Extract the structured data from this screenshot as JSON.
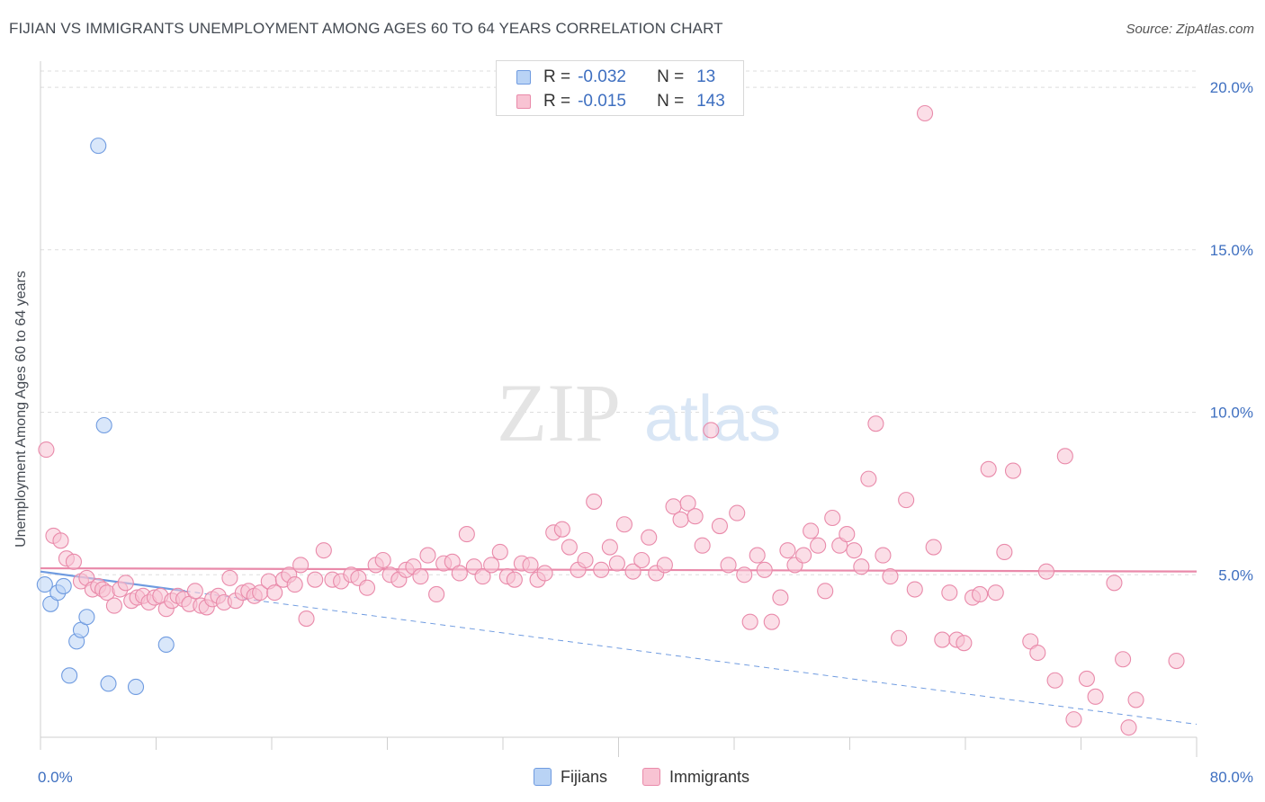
{
  "title": "FIJIAN VS IMMIGRANTS UNEMPLOYMENT AMONG AGES 60 TO 64 YEARS CORRELATION CHART",
  "source": "Source: ZipAtlas.com",
  "watermark": {
    "zip": "ZIP",
    "atlas": "atlas"
  },
  "legend": {
    "rows": [
      {
        "r_label": "R =",
        "r_value": "-0.032",
        "n_label": "N =",
        "n_value": "13",
        "fill": "#b9d3f5",
        "stroke": "#6f9be0"
      },
      {
        "r_label": "R =",
        "r_value": "-0.015",
        "n_label": "N =",
        "n_value": "143",
        "fill": "#f8c3d3",
        "stroke": "#e98aaa"
      }
    ]
  },
  "bottom_legend": [
    {
      "label": "Fijians",
      "fill": "#b9d3f5",
      "stroke": "#6f9be0"
    },
    {
      "label": "Immigrants",
      "fill": "#f8c3d3",
      "stroke": "#e98aaa"
    }
  ],
  "chart_data": {
    "type": "scatter",
    "title": "FIJIAN VS IMMIGRANTS UNEMPLOYMENT AMONG AGES 60 TO 64 YEARS CORRELATION CHART",
    "xlabel": "",
    "ylabel": "Unemployment Among Ages 60 to 64 years",
    "xlim": [
      0,
      80
    ],
    "ylim": [
      0,
      20.5
    ],
    "x_tick_labels": [
      {
        "value": 0,
        "label": "0.0%"
      },
      {
        "value": 80,
        "label": "80.0%"
      }
    ],
    "y_tick_labels": [
      {
        "value": 5,
        "label": "5.0%"
      },
      {
        "value": 10,
        "label": "10.0%"
      },
      {
        "value": 15,
        "label": "15.0%"
      },
      {
        "value": 20,
        "label": "20.0%"
      }
    ],
    "grid": "horizontal dashed",
    "series": [
      {
        "name": "Fijians",
        "color": "#6f9be0",
        "fill": "#b9d3f5",
        "trend": {
          "x0": 0,
          "y0": 5.1,
          "x1": 10,
          "y1": 4.5,
          "extended_to": [
            80,
            0.4
          ]
        },
        "points": [
          [
            0.3,
            4.7
          ],
          [
            0.7,
            4.1
          ],
          [
            1.2,
            4.45
          ],
          [
            1.6,
            4.65
          ],
          [
            2.0,
            1.9
          ],
          [
            2.5,
            2.95
          ],
          [
            2.8,
            3.3
          ],
          [
            3.2,
            3.7
          ],
          [
            4.0,
            18.2
          ],
          [
            4.4,
            9.6
          ],
          [
            4.7,
            1.65
          ],
          [
            6.6,
            1.55
          ],
          [
            8.7,
            2.85
          ]
        ]
      },
      {
        "name": "Immigrants",
        "color": "#e98aaa",
        "fill": "#f8c3d3",
        "trend": {
          "x0": 0,
          "y0": 5.2,
          "x1": 80,
          "y1": 5.1
        },
        "points": [
          [
            0.4,
            8.85
          ],
          [
            0.9,
            6.2
          ],
          [
            1.4,
            6.05
          ],
          [
            1.8,
            5.5
          ],
          [
            2.3,
            5.4
          ],
          [
            2.8,
            4.8
          ],
          [
            3.2,
            4.9
          ],
          [
            3.6,
            4.55
          ],
          [
            4.0,
            4.65
          ],
          [
            4.3,
            4.55
          ],
          [
            4.6,
            4.45
          ],
          [
            5.1,
            4.05
          ],
          [
            5.5,
            4.55
          ],
          [
            5.9,
            4.75
          ],
          [
            6.3,
            4.2
          ],
          [
            6.7,
            4.3
          ],
          [
            7.1,
            4.35
          ],
          [
            7.5,
            4.15
          ],
          [
            7.9,
            4.3
          ],
          [
            8.3,
            4.35
          ],
          [
            8.7,
            3.95
          ],
          [
            9.1,
            4.2
          ],
          [
            9.5,
            4.35
          ],
          [
            9.9,
            4.25
          ],
          [
            10.3,
            4.1
          ],
          [
            10.7,
            4.5
          ],
          [
            11.1,
            4.05
          ],
          [
            11.5,
            4.0
          ],
          [
            11.9,
            4.25
          ],
          [
            12.3,
            4.35
          ],
          [
            12.7,
            4.15
          ],
          [
            13.1,
            4.9
          ],
          [
            13.5,
            4.2
          ],
          [
            14.0,
            4.45
          ],
          [
            14.4,
            4.5
          ],
          [
            14.8,
            4.35
          ],
          [
            15.2,
            4.45
          ],
          [
            15.8,
            4.8
          ],
          [
            16.2,
            4.45
          ],
          [
            16.8,
            4.85
          ],
          [
            17.2,
            5.0
          ],
          [
            17.6,
            4.7
          ],
          [
            18.0,
            5.3
          ],
          [
            18.4,
            3.65
          ],
          [
            19.0,
            4.85
          ],
          [
            19.6,
            5.75
          ],
          [
            20.2,
            4.85
          ],
          [
            20.8,
            4.8
          ],
          [
            21.5,
            5.0
          ],
          [
            22.0,
            4.9
          ],
          [
            22.6,
            4.6
          ],
          [
            23.2,
            5.3
          ],
          [
            23.7,
            5.45
          ],
          [
            24.2,
            5.0
          ],
          [
            24.8,
            4.85
          ],
          [
            25.3,
            5.15
          ],
          [
            25.8,
            5.25
          ],
          [
            26.3,
            4.95
          ],
          [
            26.8,
            5.6
          ],
          [
            27.4,
            4.4
          ],
          [
            27.9,
            5.35
          ],
          [
            28.5,
            5.4
          ],
          [
            29.0,
            5.05
          ],
          [
            29.5,
            6.25
          ],
          [
            30.0,
            5.25
          ],
          [
            30.6,
            4.95
          ],
          [
            31.2,
            5.3
          ],
          [
            31.8,
            5.7
          ],
          [
            32.3,
            4.95
          ],
          [
            32.8,
            4.85
          ],
          [
            33.3,
            5.35
          ],
          [
            33.9,
            5.3
          ],
          [
            34.4,
            4.85
          ],
          [
            34.9,
            5.05
          ],
          [
            35.5,
            6.3
          ],
          [
            36.1,
            6.4
          ],
          [
            36.6,
            5.85
          ],
          [
            37.2,
            5.15
          ],
          [
            37.7,
            5.45
          ],
          [
            38.3,
            7.25
          ],
          [
            38.8,
            5.15
          ],
          [
            39.4,
            5.85
          ],
          [
            39.9,
            5.35
          ],
          [
            40.4,
            6.55
          ],
          [
            41.0,
            5.1
          ],
          [
            41.6,
            5.45
          ],
          [
            42.1,
            6.15
          ],
          [
            42.6,
            5.05
          ],
          [
            43.2,
            5.3
          ],
          [
            43.8,
            7.1
          ],
          [
            44.3,
            6.7
          ],
          [
            44.8,
            7.2
          ],
          [
            45.3,
            6.8
          ],
          [
            45.8,
            5.9
          ],
          [
            46.4,
            9.45
          ],
          [
            47.0,
            6.5
          ],
          [
            47.6,
            5.3
          ],
          [
            48.2,
            6.9
          ],
          [
            48.7,
            5.0
          ],
          [
            49.1,
            3.55
          ],
          [
            49.6,
            5.6
          ],
          [
            50.1,
            5.15
          ],
          [
            50.6,
            3.55
          ],
          [
            51.2,
            4.3
          ],
          [
            51.7,
            5.75
          ],
          [
            52.2,
            5.3
          ],
          [
            52.8,
            5.6
          ],
          [
            53.3,
            6.35
          ],
          [
            53.8,
            5.9
          ],
          [
            54.3,
            4.5
          ],
          [
            54.8,
            6.75
          ],
          [
            55.3,
            5.9
          ],
          [
            55.8,
            6.25
          ],
          [
            56.3,
            5.75
          ],
          [
            56.8,
            5.25
          ],
          [
            57.3,
            7.95
          ],
          [
            57.8,
            9.65
          ],
          [
            58.3,
            5.6
          ],
          [
            58.8,
            4.95
          ],
          [
            59.4,
            3.05
          ],
          [
            59.9,
            7.3
          ],
          [
            60.5,
            4.55
          ],
          [
            61.2,
            19.2
          ],
          [
            61.8,
            5.85
          ],
          [
            62.4,
            3.0
          ],
          [
            62.9,
            4.45
          ],
          [
            63.4,
            3.0
          ],
          [
            63.9,
            2.9
          ],
          [
            64.5,
            4.3
          ],
          [
            65.0,
            4.4
          ],
          [
            65.6,
            8.25
          ],
          [
            66.1,
            4.45
          ],
          [
            66.7,
            5.7
          ],
          [
            67.3,
            8.2
          ],
          [
            68.5,
            2.95
          ],
          [
            69.0,
            2.6
          ],
          [
            69.6,
            5.1
          ],
          [
            70.2,
            1.75
          ],
          [
            70.9,
            8.65
          ],
          [
            71.5,
            0.55
          ],
          [
            72.4,
            1.8
          ],
          [
            73.0,
            1.25
          ],
          [
            74.3,
            4.75
          ],
          [
            74.9,
            2.4
          ],
          [
            75.3,
            0.3
          ],
          [
            75.8,
            1.15
          ],
          [
            78.6,
            2.35
          ]
        ]
      }
    ]
  }
}
